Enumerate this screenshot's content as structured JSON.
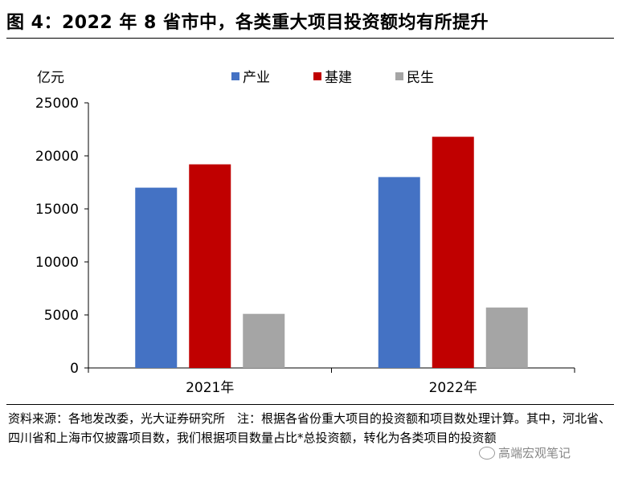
{
  "title": "图 4：2022 年 8 省市中，各类重大项目投资额均有所提升",
  "chart_data": {
    "type": "bar",
    "unit_label": "亿元",
    "categories": [
      "2021年",
      "2022年"
    ],
    "series": [
      {
        "name": "产业",
        "color": "#4472C4",
        "values": [
          17000,
          18000
        ]
      },
      {
        "name": "基建",
        "color": "#C00000",
        "values": [
          19200,
          21800
        ]
      },
      {
        "name": "民生",
        "color": "#A5A5A5",
        "values": [
          5100,
          5700
        ]
      }
    ],
    "ylim": [
      0,
      25000
    ],
    "yticks": [
      "0",
      "5000",
      "10000",
      "15000",
      "20000",
      "25000"
    ],
    "grid": false,
    "legend_position": "top-center"
  },
  "source_note": "资料来源：各地发改委，光大证券研究所　注：根据各省份重大项目的投资额和项目数处理计算。其中，河北省、四川省和上海市仅披露项目数，我们根据项目数量占比*总投资额，转化为各类项目的投资额",
  "watermark": "高端宏观笔记"
}
